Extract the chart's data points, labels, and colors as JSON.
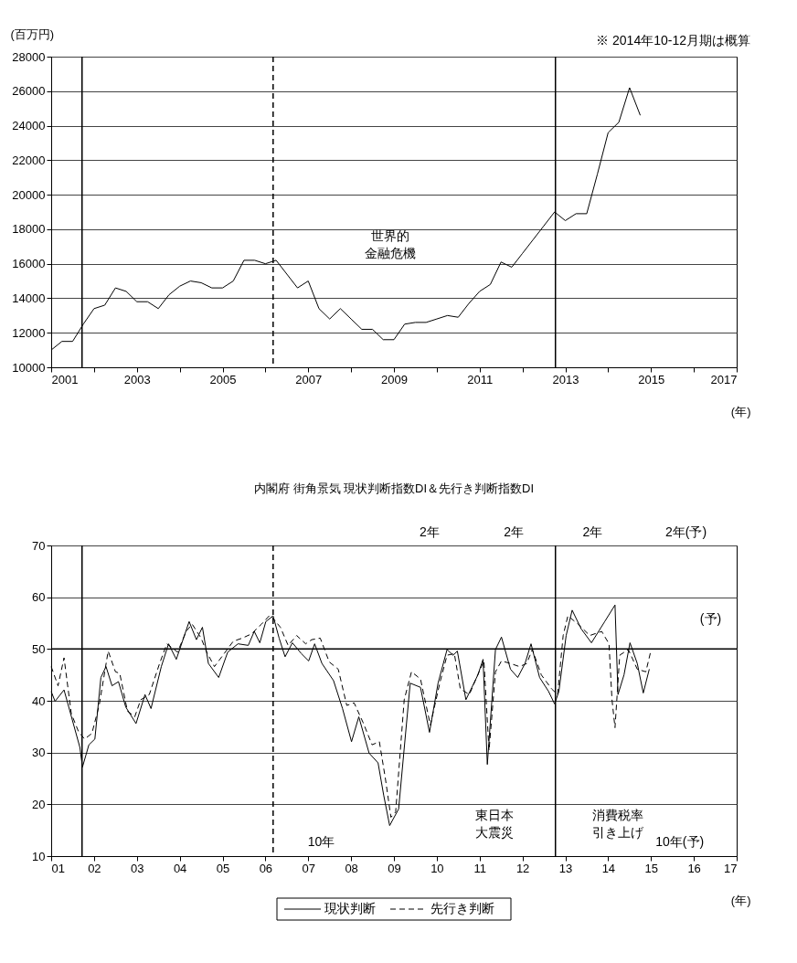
{
  "chart_data": [
    {
      "type": "line",
      "ylabel": "(百万円)",
      "xlabel": "(年)",
      "x": [
        2001,
        2001.25,
        2001.5,
        2001.75,
        2002,
        2002.25,
        2002.5,
        2002.75,
        2003,
        2003.25,
        2003.5,
        2003.75,
        2004,
        2004.25,
        2004.5,
        2004.75,
        2005,
        2005.25,
        2005.5,
        2005.75,
        2006,
        2006.25,
        2006.5,
        2006.75,
        2007,
        2007.25,
        2007.5,
        2007.75,
        2008,
        2008.25,
        2008.5,
        2008.75,
        2009,
        2009.25,
        2009.5,
        2009.75,
        2010,
        2010.25,
        2010.5,
        2010.75,
        2011,
        2011.25,
        2011.5,
        2011.75,
        2012,
        2012.25,
        2012.5,
        2012.75,
        2013,
        2013.25,
        2013.5,
        2013.75,
        2014,
        2014.25,
        2014.5,
        2014.75
      ],
      "series": [
        {
          "color": "#000000",
          "values": [
            11000,
            11500,
            11500,
            12500,
            13400,
            13600,
            14600,
            14400,
            13800,
            13800,
            13400,
            14200,
            14700,
            15000,
            14900,
            14600,
            14600,
            15000,
            16200,
            16200,
            16000,
            16200,
            15400,
            14600,
            15000,
            13400,
            12800,
            13400,
            12800,
            12200,
            12200,
            11600,
            11600,
            12500,
            12600,
            12600,
            12800,
            13000,
            12900,
            13700,
            14400,
            14800,
            16100,
            15800,
            16600,
            17400,
            18200,
            19000,
            18500,
            18900,
            18900,
            21200,
            23600,
            24200,
            26200,
            24600
          ]
        }
      ],
      "xlim": [
        2001,
        2017
      ],
      "xticks": [
        2001,
        {
          "value": 2002,
          "label": null
        },
        2003,
        {
          "value": 2004,
          "label": null
        },
        2005,
        {
          "value": 2006,
          "label": null
        },
        2007,
        {
          "value": 2008,
          "label": null
        },
        2009,
        {
          "value": 2010,
          "label": null
        },
        2011,
        {
          "value": 2012,
          "label": null
        },
        2013,
        {
          "value": 2014,
          "label": null
        },
        2015,
        {
          "value": 2016,
          "label": null
        },
        2017
      ],
      "ylim": [
        10000,
        28000
      ],
      "yticks": [
        10000,
        12000,
        14000,
        16000,
        18000,
        20000,
        22000,
        24000,
        26000,
        28000
      ],
      "grid": "y",
      "line_style": "solid",
      "ref_lines": [
        {
          "axis": "x",
          "value": 2001.72,
          "line_style": "solid"
        },
        {
          "axis": "x",
          "value": 2006.18,
          "line_style": "dashed"
        },
        {
          "axis": "x",
          "value": 2012.77,
          "line_style": "solid"
        }
      ],
      "annotations": [
        "世界的金融危機",
        "※ 2014年10-12月期は概算"
      ]
    },
    {
      "type": "line",
      "title": "内閣府 街角景気 現状判断指数DI＆先行き判断指数DI",
      "xlabel": "(年)",
      "series": [
        {
          "name": "現状判断",
          "color": "#000000",
          "line_style": "solid",
          "x": [
            2001.0,
            2001.09,
            2001.3,
            2001.67,
            2001.73,
            2001.88,
            2002.02,
            2002.16,
            2002.28,
            2002.42,
            2002.57,
            2002.74,
            2002.98,
            2003.19,
            2003.33,
            2003.57,
            2003.74,
            2003.92,
            2004.22,
            2004.39,
            2004.53,
            2004.67,
            2004.91,
            2005.12,
            2005.36,
            2005.6,
            2005.74,
            2005.87,
            2006.01,
            2006.18,
            2006.32,
            2006.46,
            2006.63,
            2006.84,
            2007.01,
            2007.15,
            2007.32,
            2007.59,
            2007.8,
            2008.01,
            2008.18,
            2008.42,
            2008.63,
            2008.76,
            2008.9,
            2009.11,
            2009.38,
            2009.62,
            2009.83,
            2010.03,
            2010.24,
            2010.38,
            2010.48,
            2010.68,
            2010.96,
            2011.08,
            2011.18,
            2011.37,
            2011.51,
            2011.72,
            2011.89,
            2012.06,
            2012.2,
            2012.4,
            2012.61,
            2012.75,
            2012.85,
            2013.02,
            2013.16,
            2013.37,
            2013.61,
            2013.92,
            2014.16,
            2014.23,
            2014.37,
            2014.51,
            2014.68,
            2014.82,
            2014.96
          ],
          "values": [
            41.8,
            39.9,
            42.1,
            31.0,
            27.2,
            31.5,
            32.6,
            44.5,
            46.6,
            42.9,
            43.7,
            38.8,
            35.6,
            41.2,
            38.5,
            46.6,
            51.0,
            48.0,
            55.3,
            51.8,
            54.2,
            47.2,
            44.5,
            49.4,
            51.0,
            50.7,
            53.4,
            51.2,
            55.3,
            56.4,
            52.1,
            48.5,
            51.2,
            49.1,
            47.7,
            51.0,
            47.2,
            43.9,
            38.5,
            32.1,
            36.9,
            29.9,
            28.0,
            21.8,
            15.9,
            19.1,
            43.4,
            42.6,
            33.9,
            43.4,
            49.9,
            48.8,
            49.6,
            40.2,
            45.0,
            48.0,
            27.7,
            49.9,
            52.3,
            46.1,
            44.5,
            47.2,
            51.0,
            44.5,
            41.8,
            39.4,
            41.8,
            52.6,
            57.5,
            53.9,
            51.2,
            55.3,
            58.5,
            41.2,
            45.0,
            51.2,
            47.2,
            41.5,
            46.1
          ]
        },
        {
          "name": "先行き判断",
          "color": "#000000",
          "line_style": "dashed",
          "x": [
            2001.0,
            2001.16,
            2001.3,
            2001.47,
            2001.64,
            2001.78,
            2001.95,
            2002.12,
            2002.33,
            2002.5,
            2002.6,
            2002.78,
            2002.95,
            2003.09,
            2003.29,
            2003.53,
            2003.7,
            2003.95,
            2004.15,
            2004.29,
            2004.5,
            2004.63,
            2004.81,
            2005.01,
            2005.25,
            2005.46,
            2005.67,
            2005.91,
            2006.11,
            2006.35,
            2006.53,
            2006.73,
            2006.94,
            2007.08,
            2007.28,
            2007.49,
            2007.7,
            2007.9,
            2008.07,
            2008.28,
            2008.49,
            2008.66,
            2008.8,
            2008.93,
            2009.04,
            2009.24,
            2009.41,
            2009.62,
            2009.85,
            2010.07,
            2010.24,
            2010.41,
            2010.55,
            2010.76,
            2010.93,
            2011.1,
            2011.22,
            2011.37,
            2011.51,
            2011.72,
            2011.93,
            2012.1,
            2012.23,
            2012.44,
            2012.68,
            2012.82,
            2012.95,
            2013.06,
            2013.3,
            2013.57,
            2013.85,
            2014.02,
            2014.09,
            2014.16,
            2014.27,
            2014.47,
            2014.68,
            2014.88,
            2014.99
          ],
          "values": [
            46.6,
            42.9,
            48.3,
            37.5,
            34.0,
            32.6,
            33.7,
            39.1,
            49.6,
            45.6,
            45.3,
            38.0,
            36.9,
            40.2,
            41.2,
            47.2,
            51.0,
            49.4,
            53.4,
            54.8,
            52.1,
            49.4,
            46.6,
            48.8,
            51.5,
            52.1,
            52.9,
            54.8,
            56.6,
            54.2,
            50.7,
            52.6,
            51.0,
            51.8,
            52.1,
            47.5,
            46.1,
            39.1,
            39.6,
            35.8,
            31.5,
            32.1,
            25.0,
            17.5,
            18.5,
            40.2,
            45.6,
            44.2,
            35.3,
            43.4,
            48.8,
            49.1,
            42.3,
            41.2,
            44.5,
            47.7,
            30.4,
            45.6,
            47.7,
            47.2,
            46.6,
            47.2,
            49.9,
            45.0,
            42.3,
            41.2,
            52.6,
            56.4,
            54.8,
            52.6,
            53.4,
            51.0,
            40.2,
            34.8,
            48.8,
            49.9,
            46.1,
            45.6,
            49.4
          ]
        }
      ],
      "xlim": [
        2001,
        2017
      ],
      "xticks": [
        {
          "value": 2001,
          "label": "01"
        },
        {
          "value": 2002,
          "label": "02"
        },
        {
          "value": 2003,
          "label": "03"
        },
        {
          "value": 2004,
          "label": "04"
        },
        {
          "value": 2005,
          "label": "05"
        },
        {
          "value": 2006,
          "label": "06"
        },
        {
          "value": 2007,
          "label": "07"
        },
        {
          "value": 2008,
          "label": "08"
        },
        {
          "value": 2009,
          "label": "09"
        },
        {
          "value": 2010,
          "label": "10"
        },
        {
          "value": 2011,
          "label": "11"
        },
        {
          "value": 2012,
          "label": "12"
        },
        {
          "value": 2013,
          "label": "13"
        },
        {
          "value": 2014,
          "label": "14"
        },
        {
          "value": 2015,
          "label": "15"
        },
        {
          "value": 2016,
          "label": "16"
        },
        {
          "value": 2017,
          "label": "17"
        }
      ],
      "ylim": [
        10,
        70
      ],
      "yticks": [
        10,
        20,
        30,
        40,
        50,
        60,
        70
      ],
      "grid": "y",
      "legend": "bottom",
      "ref_lines": [
        {
          "axis": "y",
          "value": 50,
          "line_style": "solid"
        },
        {
          "axis": "x",
          "value": 2001.72,
          "line_style": "solid"
        },
        {
          "axis": "x",
          "value": 2006.18,
          "line_style": "dashed"
        },
        {
          "axis": "x",
          "value": 2012.77,
          "line_style": "solid"
        }
      ],
      "annotations": [
        "2年",
        "2年",
        "2年",
        "2年(予)",
        "10年",
        "10年(予)",
        "東日本大震災",
        "消費税率引き上げ",
        "(予)"
      ]
    }
  ]
}
